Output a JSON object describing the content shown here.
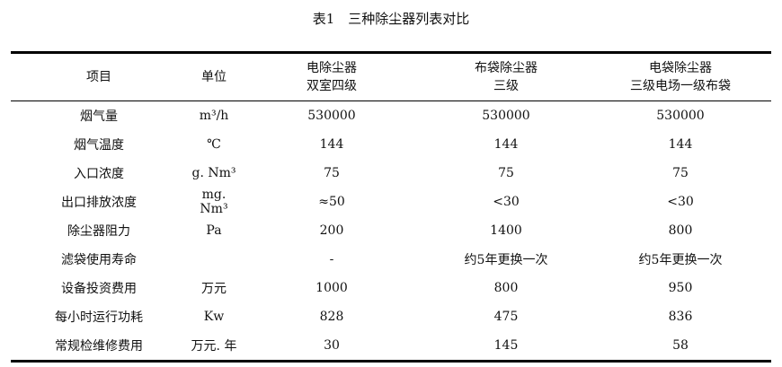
{
  "title": "表1　三种除尘器列表对比",
  "headers": [
    [
      "项目"
    ],
    [
      "单位"
    ],
    [
      "电除尘器",
      "双室四级"
    ],
    [
      "布袋除尘器",
      "三级"
    ],
    [
      "电袋除尘器",
      "三级电场一级布袋"
    ]
  ],
  "rows": [
    [
      "烟气量",
      "m³/h",
      "530000",
      "530000",
      "530000"
    ],
    [
      "烟气温度",
      "℃",
      "144",
      "144",
      "144"
    ],
    [
      "入口浓度",
      "g. Nm³",
      "75",
      "75",
      "75"
    ],
    [
      "出口排放浓度",
      "mg. Nm³",
      "≈50",
      "<30",
      "<30"
    ],
    [
      "除尘器阻力",
      "Pa",
      "200",
      "1400",
      "800"
    ],
    [
      "滤袋使用寿命",
      "",
      "-",
      "约5年更换一次",
      "约5年更换一次"
    ],
    [
      "设备投资费用",
      "万元",
      "1000",
      "800",
      "950"
    ],
    [
      "每小时运行功耗",
      "Kw",
      "828",
      "475",
      "836"
    ],
    [
      "常规检维修费用",
      "万元. 年",
      "30",
      "145",
      "58"
    ]
  ]
}
